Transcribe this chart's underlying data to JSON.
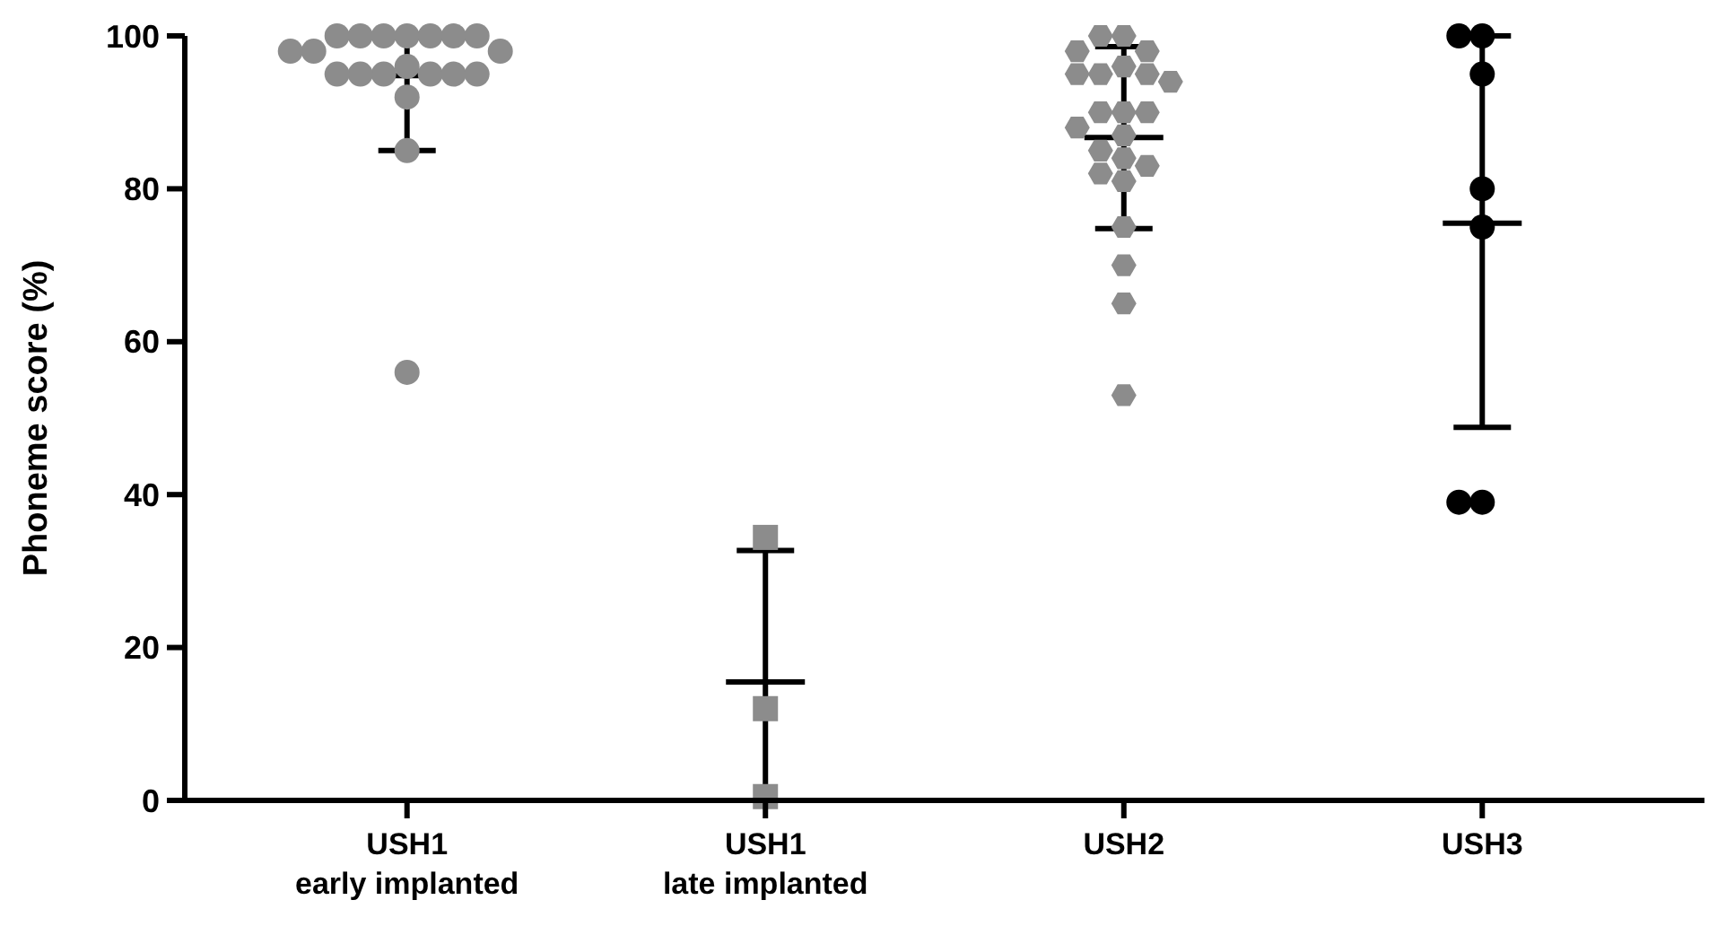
{
  "chart_data": {
    "type": "scatter",
    "ylabel": "Phoneme score (%)",
    "categories": [
      "USH1\nearly implanted",
      "USH1\nlate implanted",
      "USH2",
      "USH3"
    ],
    "ylim": [
      0,
      100
    ],
    "yticks": [
      0,
      20,
      40,
      60,
      80,
      100
    ],
    "grid": false,
    "series": [
      {
        "marker": "circle",
        "color": "#8c8c8c",
        "x": [
          "USH1\nearly implanted",
          "USH1\nearly implanted",
          "USH1\nearly implanted",
          "USH1\nearly implanted",
          "USH1\nearly implanted",
          "USH1\nearly implanted",
          "USH1\nearly implanted",
          "USH1\nearly implanted",
          "USH1\nearly implanted",
          "USH1\nearly implanted",
          "USH1\nearly implanted",
          "USH1\nearly implanted",
          "USH1\nearly implanted",
          "USH1\nearly implanted",
          "USH1\nearly implanted",
          "USH1\nearly implanted",
          "USH1\nearly implanted",
          "USH1\nearly implanted",
          "USH1\nearly implanted",
          "USH1\nearly implanted"
        ],
        "values": [
          100,
          100,
          100,
          100,
          100,
          100,
          100,
          98,
          98,
          98,
          96,
          95,
          95,
          95,
          95,
          95,
          95,
          92,
          85,
          56
        ]
      },
      {
        "marker": "square",
        "color": "#8c8c8c",
        "x": [
          "USH1\nlate implanted",
          "USH1\nlate implanted",
          "USH1\nlate implanted"
        ],
        "values": [
          34.4,
          12,
          0.5
        ]
      },
      {
        "color": "#8c8c8c",
        "x": [
          "USH2",
          "USH2",
          "USH2",
          "USH2",
          "USH2",
          "USH2",
          "USH2",
          "USH2",
          "USH2",
          "USH2",
          "USH2",
          "USH2",
          "USH2",
          "USH2",
          "USH2",
          "USH2",
          "USH2",
          "USH2",
          "USH2",
          "USH2",
          "USH2",
          "USH2",
          "USH2"
        ],
        "values": [
          100,
          100,
          98,
          98,
          96,
          95,
          95,
          95,
          94,
          90,
          90,
          90,
          88,
          87,
          85,
          84,
          83,
          82,
          81,
          75,
          70,
          65,
          53
        ]
      },
      {
        "marker": "circle",
        "color": "#000000",
        "x": [
          "USH3",
          "USH3",
          "USH3",
          "USH3",
          "USH3",
          "USH3",
          "USH3"
        ],
        "values": [
          100,
          100,
          95,
          80,
          75,
          39,
          39
        ]
      },
      {
        "type": "box",
        "color": "#000000",
        "boxes": [
          {
            "low": 85,
            "q1": 94.8,
            "median": 94.8,
            "q3": 94.8,
            "high": 100
          },
          {
            "low": 0,
            "q1": 15.5,
            "median": 15.5,
            "q3": 15.5,
            "high": 32.7
          },
          {
            "low": 74.8,
            "q1": 86.7,
            "median": 86.7,
            "q3": 86.7,
            "high": 98.6
          },
          {
            "low": 48.8,
            "q1": 75.5,
            "median": 75.5,
            "q3": 75.5,
            "high": 100
          }
        ]
      }
    ]
  }
}
